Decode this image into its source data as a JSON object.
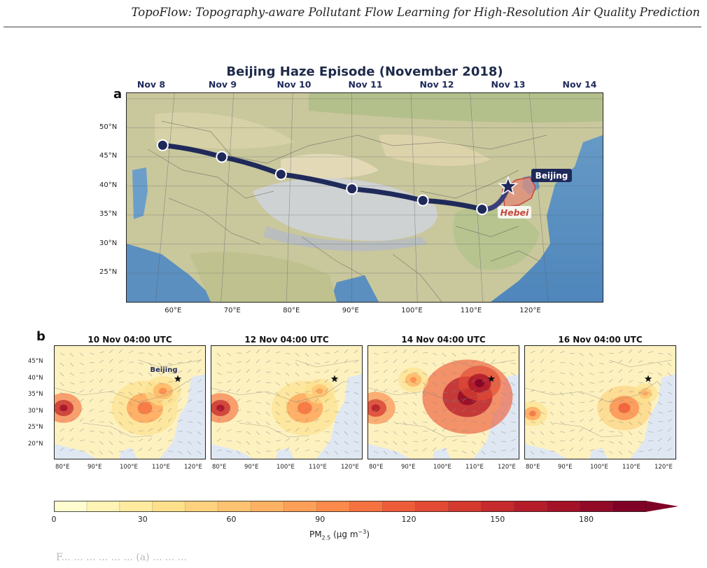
{
  "header": {
    "title": "TopoFlow: Topography-aware Pollutant Flow Learning for High-Resolution Air Quality Prediction"
  },
  "figure": {
    "title": "Beijing Haze Episode (November 2018)",
    "panel_a_label": "a",
    "panel_b_label": "b",
    "caption_fragment": "F... ... ... ... ... ... (a) ... ... ..."
  },
  "panel_a": {
    "days": [
      "Nov 8",
      "Nov 9",
      "Nov 10",
      "Nov 11",
      "Nov 12",
      "Nov 13",
      "Nov 14"
    ],
    "lat_ticks": [
      "50°N",
      "45°N",
      "40°N",
      "35°N",
      "30°N",
      "25°N"
    ],
    "lon_ticks": [
      "60°E",
      "70°E",
      "80°E",
      "90°E",
      "100°E",
      "110°E",
      "120°E"
    ],
    "city_label": "Beijing",
    "region_label": "Hebei",
    "track_color": "#1f2a5a",
    "hebei_color": "#c8453b"
  },
  "chart_data": {
    "type": "line",
    "title": "Beijing Haze Episode (November 2018)",
    "series": [
      {
        "name": "",
        "points": [
          {
            "lon": 58,
            "lat": 47
          },
          {
            "lon": 68,
            "lat": 45
          },
          {
            "lon": 78,
            "lat": 42
          },
          {
            "lon": 90,
            "lat": 39.5
          },
          {
            "lon": 102,
            "lat": 37.5
          },
          {
            "lon": 112,
            "lat": 36
          }
        ]
      }
    ],
    "destination": {
      "lon": 116.4,
      "lat": 39.9,
      "label": "Beijing"
    },
    "xlim": [
      50,
      130
    ],
    "ylim": [
      20,
      55
    ]
  },
  "panel_b": {
    "titles": [
      "10 Nov 04:00 UTC",
      "12 Nov 04:00 UTC",
      "14 Nov 04:00 UTC",
      "16 Nov 04:00 UTC"
    ],
    "lat_ticks": [
      "45°N",
      "40°N",
      "35°N",
      "30°N",
      "25°N",
      "20°N"
    ],
    "lon_ticks": [
      "80°E",
      "90°E",
      "100°E",
      "110°E",
      "120°E"
    ],
    "city_label": "Beijing"
  },
  "colorbar": {
    "ticks": [
      "0",
      "30",
      "60",
      "90",
      "120",
      "150",
      "180"
    ],
    "label": "PM2.5 (μg m−3)",
    "label_main": "PM",
    "label_sub": "2.5",
    "label_unit": " (μg m",
    "label_exp": "−3",
    "label_close": ")",
    "colors": [
      "#fffdd0",
      "#fff3b5",
      "#feeb9f",
      "#fee08b",
      "#fdd17d",
      "#fdc370",
      "#fdb263",
      "#fd9f56",
      "#fb8a4b",
      "#f67341",
      "#ee5d3a",
      "#e34a33",
      "#d53a2f",
      "#c52a2c",
      "#b51d2a",
      "#a41228",
      "#920a27",
      "#7f0126"
    ]
  }
}
